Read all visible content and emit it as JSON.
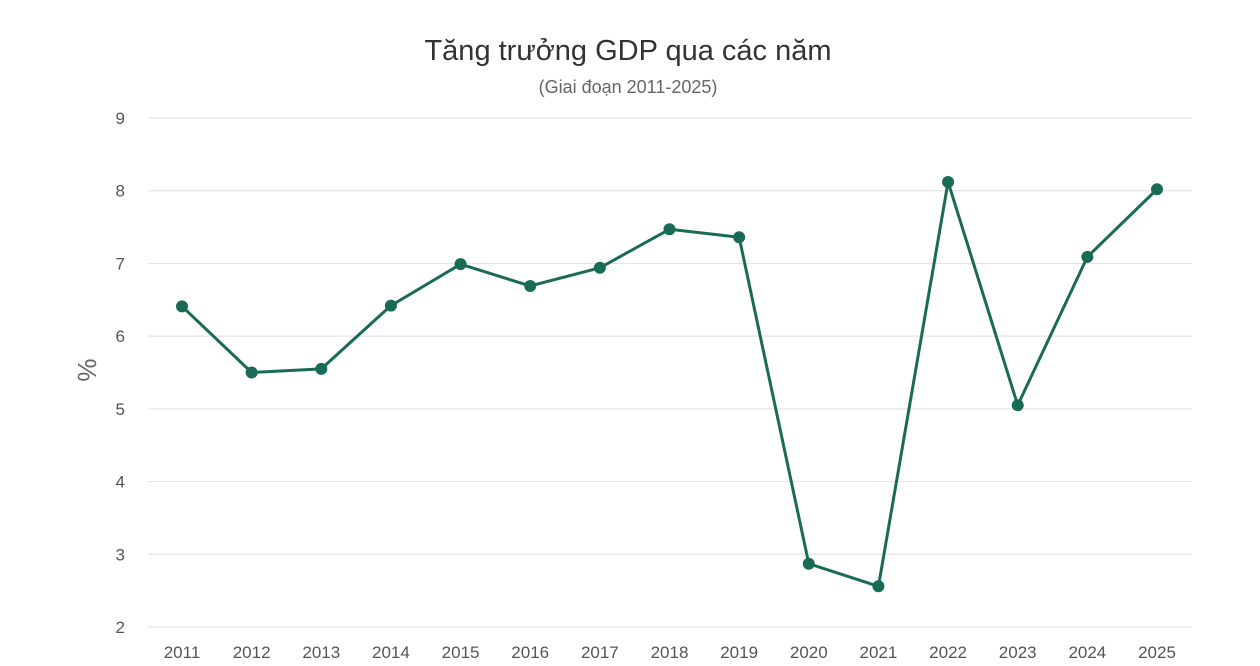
{
  "chart_data": {
    "type": "line",
    "title": "Tăng trưởng GDP qua các năm",
    "subtitle": "(Giai đoạn 2011-2025)",
    "xlabel": "",
    "ylabel": "%",
    "ylim": [
      2,
      9
    ],
    "yticks": [
      2,
      3,
      4,
      5,
      6,
      7,
      8,
      9
    ],
    "grid": true,
    "color": "#1a6b55",
    "categories": [
      "2011",
      "2012",
      "2013",
      "2014",
      "2015",
      "2016",
      "2017",
      "2018",
      "2019",
      "2020",
      "2021",
      "2022",
      "2023",
      "2024",
      "2025"
    ],
    "values": [
      6.41,
      5.5,
      5.55,
      6.42,
      6.99,
      6.69,
      6.94,
      7.47,
      7.36,
      2.87,
      2.56,
      8.12,
      5.05,
      7.09,
      8.02
    ]
  }
}
